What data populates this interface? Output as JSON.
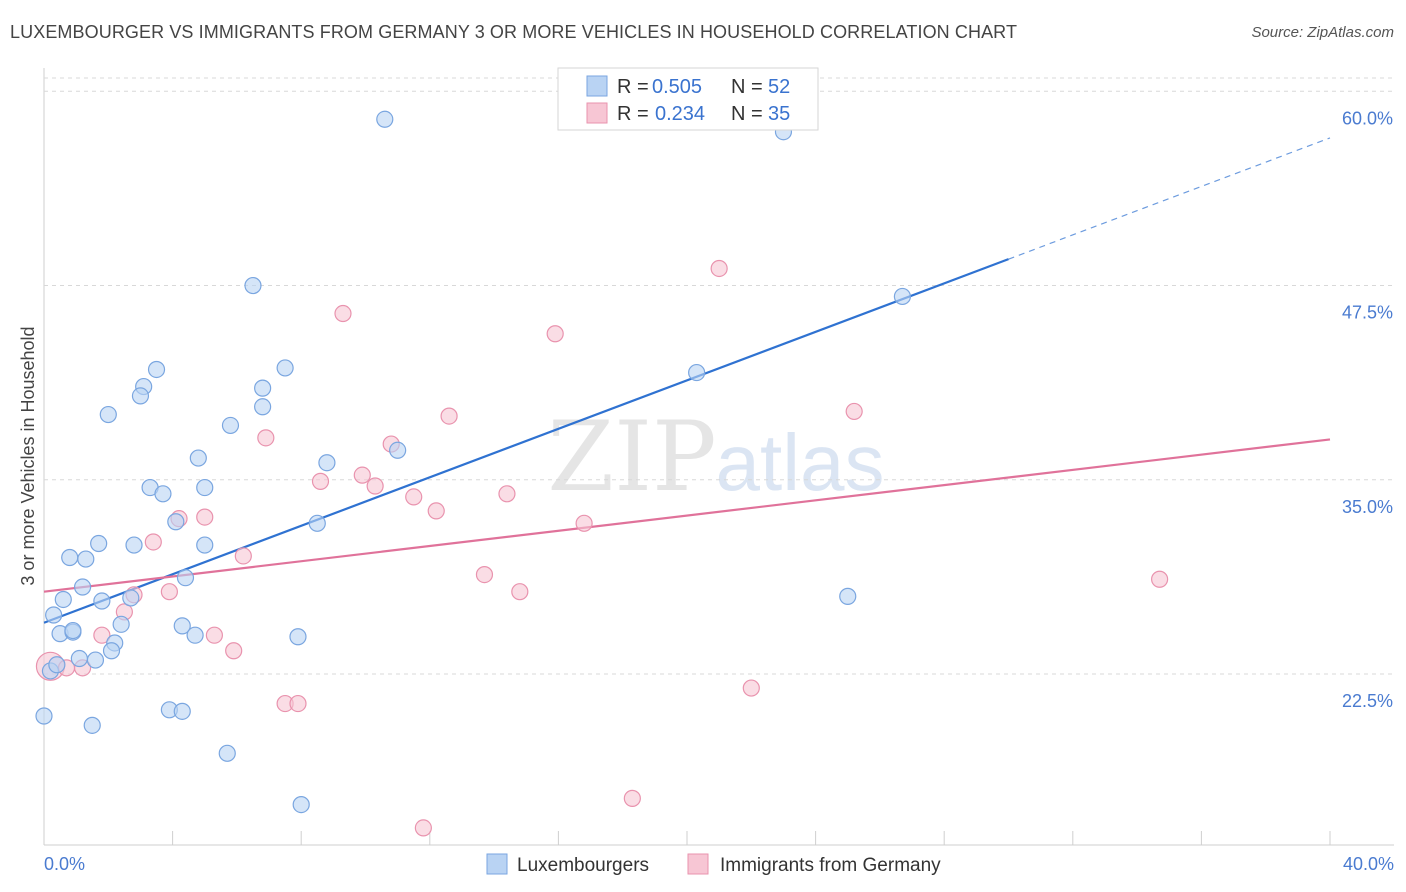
{
  "title": "LUXEMBOURGER VS IMMIGRANTS FROM GERMANY 3 OR MORE VEHICLES IN HOUSEHOLD CORRELATION CHART",
  "source": "Source: ZipAtlas.com",
  "watermark": {
    "zip": "ZIP",
    "atlas": "atlas"
  },
  "colors": {
    "blue_fill": "#b9d3f3",
    "blue_stroke": "#7aa6e0",
    "blue_line": "#2f72d1",
    "pink_fill": "#f7c6d4",
    "pink_stroke": "#e993ae",
    "pink_line": "#e0729a",
    "tick_text": "#4a7bd0",
    "grid": "#d8d8d8"
  },
  "legend": {
    "row1": {
      "r_label": "R =",
      "r_value": "0.505",
      "n_label": "N =",
      "n_value": "52"
    },
    "row2": {
      "r_label": "R =",
      "r_value": "0.234",
      "n_label": "N =",
      "n_value": "35"
    }
  },
  "chart_data": {
    "type": "scatter",
    "title": "LUXEMBOURGER VS IMMIGRANTS FROM GERMANY 3 OR MORE VEHICLES IN HOUSEHOLD CORRELATION CHART",
    "xlabel": "",
    "ylabel": "3 or more Vehicles in Household",
    "xlim": [
      0,
      40
    ],
    "ylim": [
      11.5,
      61.5
    ],
    "x_tick_labels": [
      {
        "x": 0,
        "label": "0.0%"
      },
      {
        "x": 40,
        "label": "40.0%"
      }
    ],
    "y_ticks": [
      {
        "y": 22.5,
        "label": "22.5%"
      },
      {
        "y": 35.0,
        "label": "35.0%"
      },
      {
        "y": 47.5,
        "label": "47.5%"
      },
      {
        "y": 60.0,
        "label": "60.0%"
      }
    ],
    "series": [
      {
        "name": "Luxembourgers",
        "r": 0.505,
        "n": 52,
        "trend": {
          "x0": 0,
          "y0": 25.8,
          "x1": 30,
          "y1": 49.2,
          "dash_x1": 40,
          "dash_y1": 57.0
        },
        "points": [
          [
            10.6,
            58.2
          ],
          [
            23.0,
            57.4
          ],
          [
            6.5,
            47.5
          ],
          [
            26.7,
            46.8
          ],
          [
            3.5,
            42.1
          ],
          [
            7.5,
            42.2
          ],
          [
            20.3,
            41.9
          ],
          [
            3.1,
            41.0
          ],
          [
            3.0,
            40.4
          ],
          [
            6.8,
            40.9
          ],
          [
            6.8,
            39.7
          ],
          [
            2.0,
            39.2
          ],
          [
            5.8,
            38.5
          ],
          [
            11.0,
            36.9
          ],
          [
            4.8,
            36.4
          ],
          [
            8.8,
            36.1
          ],
          [
            3.3,
            34.5
          ],
          [
            3.7,
            34.1
          ],
          [
            5.0,
            34.5
          ],
          [
            4.1,
            32.3
          ],
          [
            8.5,
            32.2
          ],
          [
            1.7,
            30.9
          ],
          [
            2.8,
            30.8
          ],
          [
            5.0,
            30.8
          ],
          [
            0.8,
            30.0
          ],
          [
            1.3,
            29.9
          ],
          [
            4.4,
            28.7
          ],
          [
            1.2,
            28.1
          ],
          [
            0.6,
            27.3
          ],
          [
            1.8,
            27.2
          ],
          [
            2.7,
            27.4
          ],
          [
            25.0,
            27.5
          ],
          [
            0.3,
            26.3
          ],
          [
            2.4,
            25.7
          ],
          [
            4.3,
            25.6
          ],
          [
            0.5,
            25.1
          ],
          [
            0.9,
            25.2
          ],
          [
            0.9,
            25.3
          ],
          [
            4.7,
            25.0
          ],
          [
            7.9,
            24.9
          ],
          [
            2.2,
            24.5
          ],
          [
            2.1,
            24.0
          ],
          [
            1.6,
            23.4
          ],
          [
            0.2,
            22.7
          ],
          [
            3.9,
            20.2
          ],
          [
            4.3,
            20.1
          ],
          [
            0.0,
            19.8
          ],
          [
            1.5,
            19.2
          ],
          [
            5.7,
            17.4
          ],
          [
            8.0,
            14.1
          ],
          [
            0.4,
            23.1
          ],
          [
            1.1,
            23.5
          ]
        ]
      },
      {
        "name": "Immigrants from Germany",
        "r": 0.234,
        "n": 35,
        "trend": {
          "x0": 0,
          "y0": 27.8,
          "x1": 40,
          "y1": 37.6
        },
        "points": [
          [
            21.0,
            48.6
          ],
          [
            9.3,
            45.7
          ],
          [
            15.9,
            44.4
          ],
          [
            25.2,
            39.4
          ],
          [
            12.6,
            39.1
          ],
          [
            6.9,
            37.7
          ],
          [
            10.8,
            37.3
          ],
          [
            8.6,
            34.9
          ],
          [
            9.9,
            35.3
          ],
          [
            10.3,
            34.6
          ],
          [
            5.0,
            32.6
          ],
          [
            4.2,
            32.5
          ],
          [
            14.4,
            34.1
          ],
          [
            11.5,
            33.9
          ],
          [
            12.2,
            33.0
          ],
          [
            16.8,
            32.2
          ],
          [
            3.4,
            31.0
          ],
          [
            6.2,
            30.1
          ],
          [
            13.7,
            28.9
          ],
          [
            3.9,
            27.8
          ],
          [
            14.8,
            27.8
          ],
          [
            2.8,
            27.6
          ],
          [
            34.7,
            28.6
          ],
          [
            2.5,
            26.5
          ],
          [
            5.3,
            25.0
          ],
          [
            1.8,
            25.0
          ],
          [
            5.9,
            24.0
          ],
          [
            0.2,
            23.0
          ],
          [
            0.7,
            22.9
          ],
          [
            1.2,
            22.9
          ],
          [
            22.0,
            21.6
          ],
          [
            7.5,
            20.6
          ],
          [
            7.9,
            20.6
          ],
          [
            18.3,
            14.5
          ],
          [
            11.8,
            12.6
          ]
        ]
      }
    ]
  },
  "bottom_legend": {
    "series1": "Luxembourgers",
    "series2": "Immigrants from Germany"
  }
}
